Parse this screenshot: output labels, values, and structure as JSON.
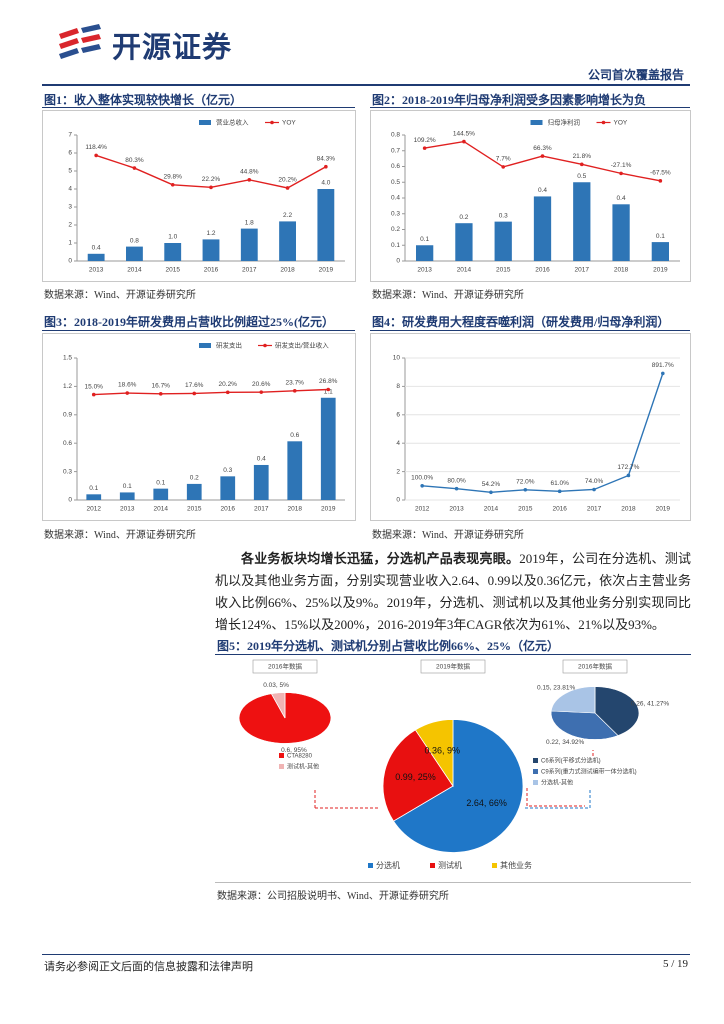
{
  "header": {
    "logo": "开源证券",
    "report_type": "公司首次覆盖报告"
  },
  "chart_data": [
    {
      "type": "bar",
      "title": "图1：收入整体实现较快增长（亿元）",
      "source": "数据来源：Wind、开源证券研究所",
      "categories": [
        "2013",
        "2014",
        "2015",
        "2016",
        "2017",
        "2018",
        "2019"
      ],
      "series": [
        {
          "name": "营业总收入",
          "color": "#2e75b6",
          "type": "bar",
          "values": [
            0.4,
            0.8,
            1.0,
            1.2,
            1.8,
            2.2,
            4.0
          ],
          "value_labels": [
            "0.4",
            "0.8",
            "1.0",
            "1.2",
            "1.8",
            "2.2",
            "4.0"
          ]
        },
        {
          "name": "YOY",
          "color": "#e02020",
          "type": "line",
          "axis": "y2",
          "values": [
            118.4,
            80.3,
            29.8,
            22.2,
            44.8,
            20.2,
            84.3
          ],
          "value_labels": [
            "118.4%",
            "80.3%",
            "29.8%",
            "22.2%",
            "44.8%",
            "20.2%",
            "84.3%"
          ]
        }
      ],
      "ylim": [
        0,
        7
      ],
      "yticks": [
        0,
        1,
        2,
        3,
        4,
        5,
        6,
        7
      ],
      "y2lim": [
        -200,
        180
      ],
      "grid": false
    },
    {
      "type": "bar",
      "title": "图2：2018-2019年归母净利润受多因素影响增长为负",
      "source": "数据来源：Wind、开源证券研究所",
      "categories": [
        "2013",
        "2014",
        "2015",
        "2016",
        "2017",
        "2018",
        "2019"
      ],
      "series": [
        {
          "name": "归母净利润",
          "color": "#2e75b6",
          "type": "bar",
          "values": [
            0.1,
            0.24,
            0.25,
            0.41,
            0.5,
            0.36,
            0.12
          ],
          "value_labels": [
            "0.1",
            "0.2",
            "0.3",
            "0.4",
            "0.5",
            "0.4",
            "0.1"
          ]
        },
        {
          "name": "YOY",
          "color": "#e02020",
          "type": "line",
          "axis": "y2",
          "values": [
            109.2,
            144.5,
            7.7,
            66.3,
            21.8,
            -27.1,
            -67.5
          ],
          "value_labels": [
            "109.2%",
            "144.5%",
            "7.7%",
            "66.3%",
            "21.8%",
            "-27.1%",
            "-67.5%"
          ]
        }
      ],
      "ylim": [
        0,
        0.8
      ],
      "yticks": [
        0,
        0.1,
        0.2,
        0.3,
        0.4,
        0.5,
        0.6,
        0.7,
        0.8
      ],
      "y2lim": [
        -500,
        180
      ],
      "grid": false
    },
    {
      "type": "bar",
      "title": "图3：2018-2019年研发费用占营收比例超过25%(亿元）",
      "source": "数据来源：Wind、开源证券研究所",
      "categories": [
        "2012",
        "2013",
        "2014",
        "2015",
        "2016",
        "2017",
        "2018",
        "2019"
      ],
      "series": [
        {
          "name": "研发支出",
          "color": "#2e75b6",
          "type": "bar",
          "values": [
            0.06,
            0.08,
            0.12,
            0.17,
            0.25,
            0.37,
            0.62,
            1.08
          ],
          "value_labels": [
            "0.1",
            "0.1",
            "0.1",
            "0.2",
            "0.3",
            "0.4",
            "0.6",
            "1.1"
          ]
        },
        {
          "name": "研发支出/营业收入",
          "color": "#e02020",
          "type": "line",
          "axis": "y2",
          "values": [
            15.0,
            18.6,
            16.7,
            17.6,
            20.2,
            20.6,
            23.7,
            26.8
          ],
          "value_labels": [
            "15.0%",
            "18.6%",
            "16.7%",
            "17.6%",
            "20.2%",
            "20.6%",
            "23.7%",
            "26.8%"
          ]
        }
      ],
      "ylim": [
        0,
        1.5
      ],
      "yticks": [
        0,
        0.3,
        0.6,
        0.9,
        1.2,
        1.5
      ],
      "y2lim": [
        -230,
        100
      ],
      "grid": false
    },
    {
      "type": "line",
      "title": "图4：研发费用大程度吞噬利润（研发费用/归母净利润）",
      "source": "数据来源：Wind、开源证券研究所",
      "categories": [
        "2012",
        "2013",
        "2014",
        "2015",
        "2016",
        "2017",
        "2018",
        "2019"
      ],
      "series": [
        {
          "color": "#2e75b6",
          "values": [
            1.0,
            0.8,
            0.542,
            0.72,
            0.61,
            0.74,
            1.727,
            8.917
          ],
          "value_labels": [
            "100.0%",
            "80.0%",
            "54.2%",
            "72.0%",
            "61.0%",
            "74.0%",
            "172.7%",
            "891.7%"
          ]
        }
      ],
      "ylim": [
        0,
        10
      ],
      "yticks": [
        0,
        2,
        4,
        6,
        8,
        10
      ],
      "grid": true
    },
    {
      "type": "pie",
      "title": "图5：2019年分选机、测试机分别占营收比例66%、25%（亿元）",
      "source": "数据来源：公司招股说明书、Wind、开源证券研究所",
      "pies": [
        {
          "title": "2019年数据",
          "categories": [
            "分选机",
            "测试机",
            "其他业务"
          ],
          "values": [
            2.64,
            0.99,
            0.36
          ],
          "value_labels": [
            "2.64, 66%",
            "0.99, 25%",
            "0.36, 9%"
          ],
          "colors": [
            "#1f77c8",
            "#e81010",
            "#f5c400"
          ]
        },
        {
          "title": "2016年数据",
          "categories": [
            "CTA8280",
            "测试机-其他"
          ],
          "values": [
            0.6,
            0.03
          ],
          "value_labels": [
            "0.6, 95%",
            "0.03, 5%"
          ],
          "colors": [
            "#ee1111",
            "#f0b4b4"
          ]
        },
        {
          "title": "2016年数据",
          "categories": [
            "C6系列(平移式分选机)",
            "C9系列(重力式测试编带一体分选机)",
            "分选机-其他"
          ],
          "values": [
            0.26,
            0.22,
            0.15
          ],
          "value_labels": [
            "0.26, 41.27%",
            "0.22, 34.92%",
            "0.15, 23.81%"
          ],
          "colors": [
            "#24466e",
            "#3e6fb0",
            "#a9c4e6"
          ]
        }
      ]
    }
  ],
  "paragraph": {
    "lead": "各业务板块均增长迅猛，分选机产品表现亮眼。",
    "body": "2019年，公司在分选机、测试机以及其他业务方面，分别实现营业收入2.64、0.99以及0.36亿元，依次占主营业务收入比例66%、25%以及9%。2019年，分选机、测试机以及其他业务分别实现同比增长124%、15%以及200%，2016-2019年3年CAGR依次为61%、21%以及93%。"
  },
  "footer": {
    "disclaimer": "请务必参阅正文后面的信息披露和法律声明",
    "page": "5 / 19"
  }
}
